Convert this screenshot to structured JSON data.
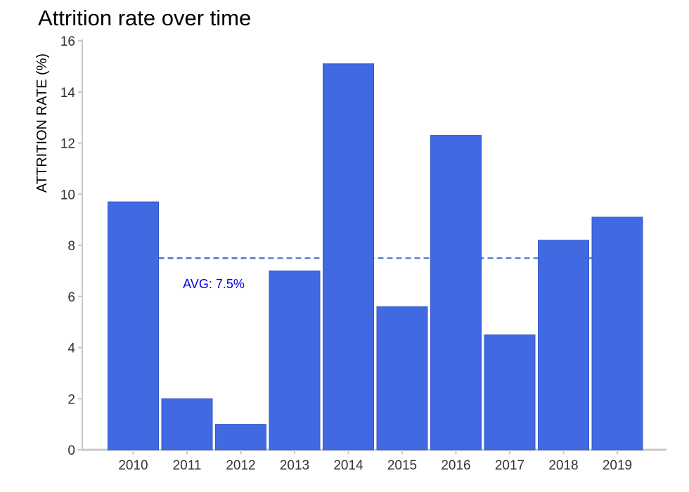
{
  "chart_data": {
    "type": "bar",
    "title": "Attrition rate over time",
    "xlabel": "",
    "ylabel": "ATTRITION RATE (%)",
    "categories": [
      "2010",
      "2011",
      "2012",
      "2013",
      "2014",
      "2015",
      "2016",
      "2017",
      "2018",
      "2019"
    ],
    "values": [
      9.7,
      2.0,
      1.0,
      7.0,
      15.1,
      5.6,
      12.3,
      4.5,
      8.2,
      9.1
    ],
    "ylim": [
      0,
      16
    ],
    "yticks": [
      "0",
      "2",
      "4",
      "6",
      "8",
      "10",
      "12",
      "14",
      "16"
    ],
    "grid": false,
    "legend": "none",
    "reference_line": {
      "value": 7.5,
      "label": "AVG: 7.5%",
      "style": "dashed"
    },
    "colors": {
      "bar": "#4169E1",
      "bar_stroke": "#3558c8",
      "avg_line": "#3f6fd0",
      "avg_text": "#0000ee",
      "axis": "#c8c8c8"
    }
  }
}
